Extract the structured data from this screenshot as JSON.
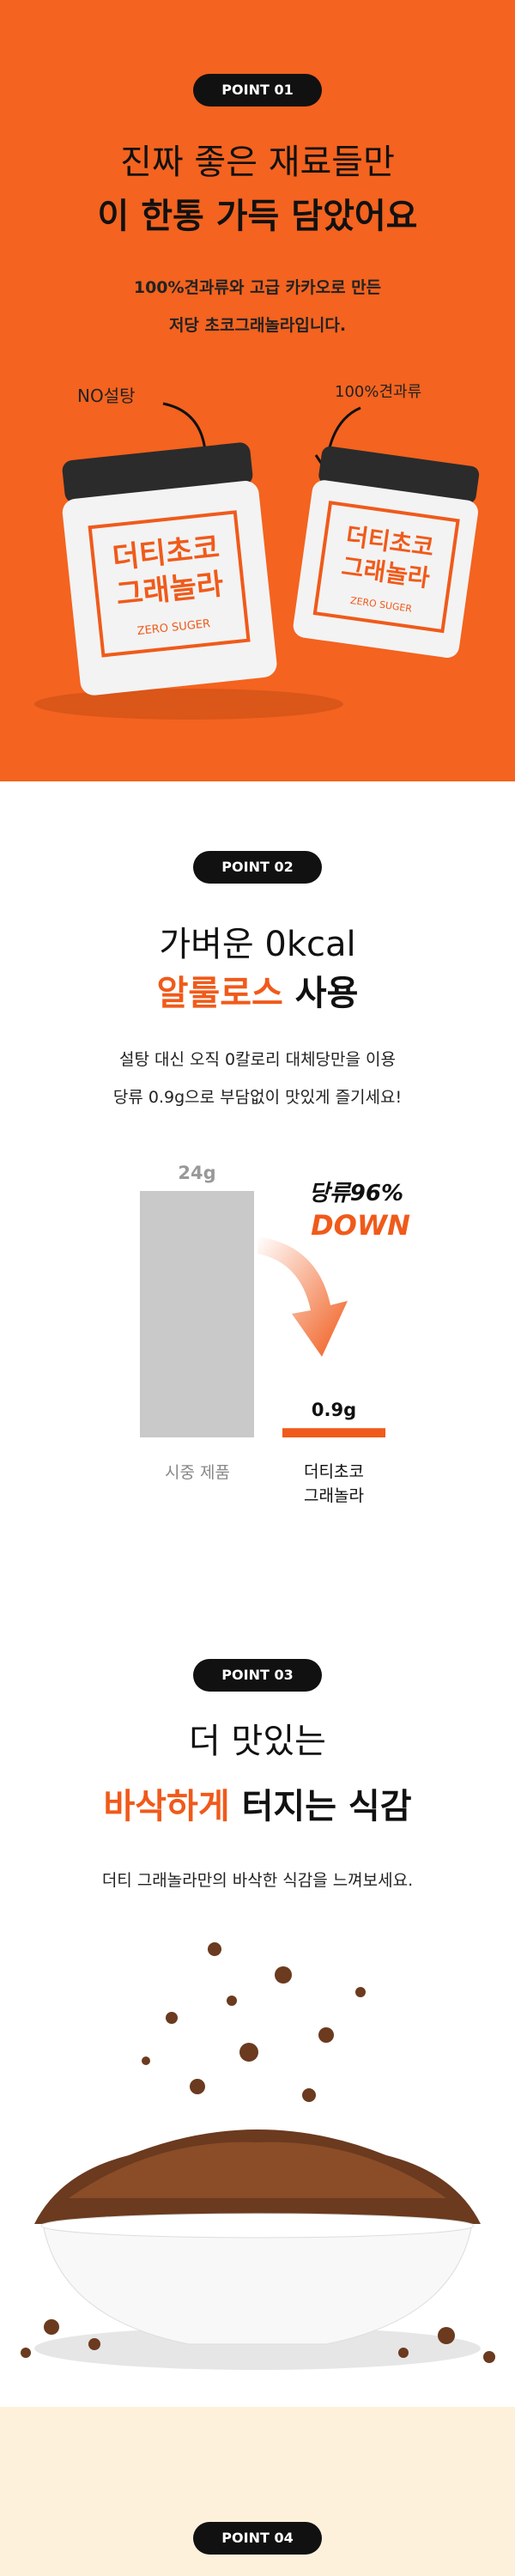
{
  "sections": [
    {
      "badge": "POINT 01",
      "headline": [
        "진짜 좋은 재료들만",
        "이 한통 가득 담았어요"
      ],
      "description": [
        "100%견과류와 고급 카카오로 만든",
        "저당 초코그래놀라입니다."
      ],
      "callouts": [
        "NO설탕",
        "100%견과류"
      ],
      "product": {
        "name": [
          "더티초코",
          "그래놀라"
        ],
        "tag": "ZERO SUGER"
      }
    },
    {
      "badge": "POINT 02",
      "headline": {
        "line1": "가벼운 0kcal",
        "highlight": "알룰로스",
        "rest": "사용"
      },
      "description": [
        "설탕 대신 오직 0칼로리 대체당만을 이용",
        "당류 0.9g으로 부담없이 맛있게 즐기세요!"
      ],
      "chart": {
        "type": "bar",
        "categories": [
          "시중 제품",
          "더티초코\n그래놀라"
        ],
        "values": [
          24,
          0.9
        ],
        "value_labels": [
          "24g",
          "0.9g"
        ],
        "colors": [
          "#c9c9c9",
          "#f05a1a"
        ],
        "annotation": [
          "당류96%",
          "DOWN"
        ]
      }
    },
    {
      "badge": "POINT 03",
      "headline": {
        "line1": "더 맛있는",
        "highlight": "바삭하게",
        "rest": "터지는 식감"
      },
      "description": "더티 그래놀라만의 바삭한 식감을 느껴보세요."
    },
    {
      "badge": "POINT 04"
    }
  ]
}
